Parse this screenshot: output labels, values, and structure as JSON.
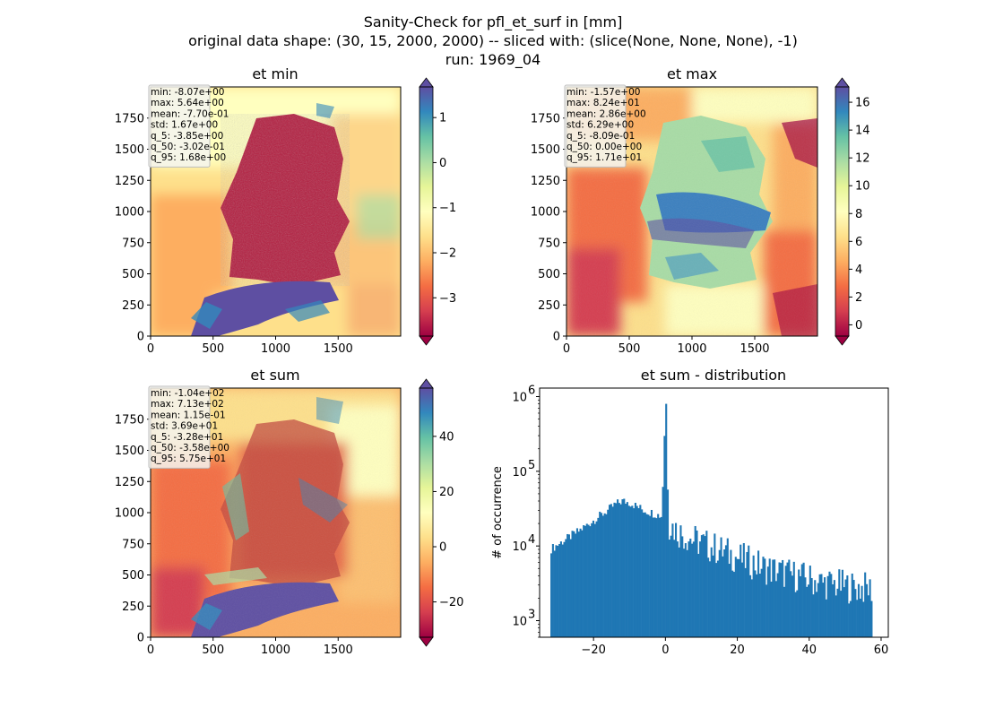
{
  "figure": {
    "title_lines": [
      "Sanity-Check for pfl_et_surf in [mm]",
      "original data shape: (30, 15, 2000, 2000) -- sliced with: (slice(None, None, None), -1)",
      "run: 1969_04"
    ]
  },
  "colors": {
    "spectral": [
      "#9e0142",
      "#d53e4f",
      "#f46d43",
      "#fdae61",
      "#fee08b",
      "#ffffbf",
      "#e6f598",
      "#abdda4",
      "#66c2a5",
      "#3288bd",
      "#5e4fa2"
    ],
    "hist_bar": "#1f77b4",
    "stats_box_fill": "#f5f5f0",
    "stats_box_edge": "#bdbdbd"
  },
  "chart_data": [
    {
      "type": "heatmap",
      "name": "et-min",
      "title": "et min",
      "xlim": [
        0,
        2000
      ],
      "ylim": [
        0,
        2000
      ],
      "xticks": [
        0,
        500,
        1000,
        1500
      ],
      "yticks": [
        0,
        250,
        500,
        750,
        1000,
        1250,
        1500,
        1750
      ],
      "colormap": "Spectral",
      "vmin": -3.85,
      "vmax": 1.68,
      "colorbar_ticks": [
        1,
        0,
        -1,
        -2,
        -3
      ],
      "colorbar_tick_labels": [
        "1",
        "0",
        "−1",
        "−2",
        "−3"
      ],
      "colorbar_extend": "both",
      "stats": [
        "min: -8.07e+00",
        "max: 5.64e+00",
        "mean: -7.70e-01",
        "std: 1.67e+00",
        "q_5: -3.85e+00",
        "q_50: -3.02e-01",
        "q_95: 1.68e+00"
      ]
    },
    {
      "type": "heatmap",
      "name": "et-max",
      "title": "et max",
      "xlim": [
        0,
        2000
      ],
      "ylim": [
        0,
        2000
      ],
      "xticks": [
        0,
        500,
        1000,
        1500
      ],
      "yticks": [
        0,
        250,
        500,
        750,
        1000,
        1250,
        1500,
        1750
      ],
      "colormap": "Spectral",
      "vmin": -0.809,
      "vmax": 17.1,
      "colorbar_ticks": [
        16,
        14,
        12,
        10,
        8,
        6,
        4,
        2,
        0
      ],
      "colorbar_tick_labels": [
        "16",
        "14",
        "12",
        "10",
        "8",
        "6",
        "4",
        "2",
        "0"
      ],
      "colorbar_extend": "both",
      "stats": [
        "min: -1.57e+00",
        "max: 8.24e+01",
        "mean: 2.86e+00",
        "std: 6.29e+00",
        "q_5: -8.09e-01",
        "q_50: 0.00e+00",
        "q_95: 1.71e+01"
      ]
    },
    {
      "type": "heatmap",
      "name": "et-sum",
      "title": "et sum",
      "xlim": [
        0,
        2000
      ],
      "ylim": [
        0,
        2000
      ],
      "xticks": [
        0,
        500,
        1000,
        1500
      ],
      "yticks": [
        0,
        250,
        500,
        750,
        1000,
        1250,
        1500,
        1750
      ],
      "colormap": "Spectral",
      "vmin": -32.8,
      "vmax": 57.5,
      "colorbar_ticks": [
        40,
        20,
        0,
        -20
      ],
      "colorbar_tick_labels": [
        "40",
        "20",
        "0",
        "−20"
      ],
      "colorbar_extend": "both",
      "stats": [
        "min: -1.04e+02",
        "max: 7.13e+02",
        "mean: 1.15e-01",
        "std: 3.69e+01",
        "q_5: -3.28e+01",
        "q_50: -3.58e+00",
        "q_95: 5.75e+01"
      ]
    },
    {
      "type": "bar",
      "name": "et-sum-distribution",
      "title": "et sum - distribution",
      "xlabel": "",
      "ylabel": "# of occurrence",
      "xlim": [
        -35,
        62
      ],
      "ylim": [
        600,
        1300000
      ],
      "yscale": "log",
      "xticks": [
        -20,
        0,
        20,
        40,
        60
      ],
      "xtick_labels": [
        "−20",
        "0",
        "20",
        "40",
        "60"
      ],
      "yticks": [
        1000,
        10000,
        100000,
        1000000
      ],
      "ytick_labels": [
        "10",
        "10",
        "10",
        "10"
      ],
      "ytick_exponents": [
        "3",
        "4",
        "5",
        "6"
      ],
      "x": [
        -32,
        -28,
        -24,
        -20,
        -16,
        -14,
        -12,
        -10,
        -8,
        -6,
        -4,
        -2,
        -1,
        0,
        1,
        2,
        4,
        8,
        12,
        16,
        20,
        24,
        28,
        32,
        36,
        40,
        44,
        48,
        52,
        56,
        57.5
      ],
      "values": [
        9000,
        12000,
        16000,
        22000,
        30000,
        36000,
        40000,
        38000,
        34000,
        30000,
        28000,
        26000,
        25000,
        800000,
        20000,
        18000,
        15000,
        12000,
        10000,
        8500,
        7000,
        6000,
        5000,
        4500,
        4000,
        3600,
        3200,
        3000,
        2800,
        2700,
        2600
      ]
    }
  ]
}
